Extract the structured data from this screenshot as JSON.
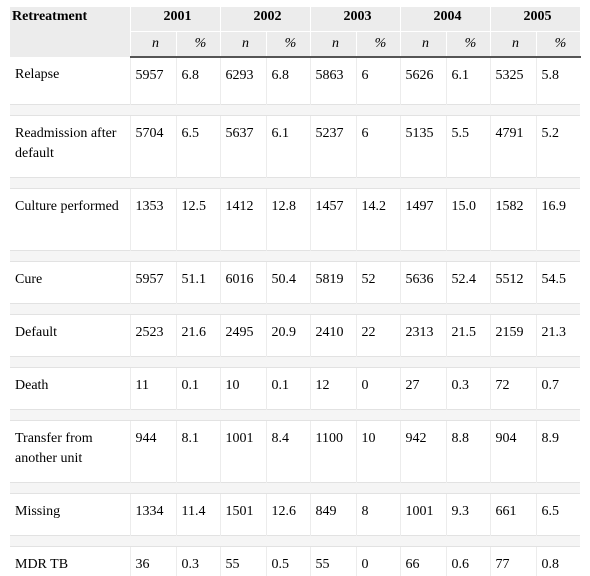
{
  "table": {
    "header_label": "Retreatment",
    "years": [
      "2001",
      "2002",
      "2003",
      "2004",
      "2005"
    ],
    "sub_labels": [
      "n",
      "%"
    ],
    "rows": [
      {
        "label": "Relapse",
        "cells": [
          "5957",
          "6.8",
          "6293",
          "6.8",
          "5863",
          "6",
          "5626",
          "6.1",
          "5325",
          "5.8"
        ]
      },
      {
        "label": "Readmission after default",
        "cells": [
          "5704",
          "6.5",
          "5637",
          "6.1",
          "5237",
          "6",
          "5135",
          "5.5",
          "4791",
          "5.2"
        ]
      },
      {
        "label": "Culture performed",
        "cells": [
          "1353",
          "12.5",
          "1412",
          "12.8",
          "1457",
          "14.2",
          "1497",
          "15.0",
          "1582",
          "16.9"
        ]
      },
      {
        "label": "Cure",
        "cells": [
          "5957",
          "51.1",
          "6016",
          "50.4",
          "5819",
          "52",
          "5636",
          "52.4",
          "5512",
          "54.5"
        ]
      },
      {
        "label": "Default",
        "cells": [
          "2523",
          "21.6",
          "2495",
          "20.9",
          "2410",
          "22",
          "2313",
          "21.5",
          "2159",
          "21.3"
        ]
      },
      {
        "label": "Death",
        "cells": [
          "11",
          "0.1",
          "10",
          "0.1",
          "12",
          "0",
          "27",
          "0.3",
          "72",
          "0.7"
        ]
      },
      {
        "label": "Transfer from another unit",
        "cells": [
          "944",
          "8.1",
          "1001",
          "8.4",
          "1100",
          "10",
          "942",
          "8.8",
          "904",
          "8.9"
        ]
      },
      {
        "label": "Missing",
        "cells": [
          "1334",
          "11.4",
          "1501",
          "12.6",
          "849",
          "8",
          "1001",
          "9.3",
          "661",
          "6.5"
        ]
      },
      {
        "label": "MDR TB",
        "cells": [
          "36",
          "0.3",
          "55",
          "0.5",
          "55",
          "0",
          "66",
          "0.6",
          "77",
          "0.8"
        ]
      }
    ]
  }
}
